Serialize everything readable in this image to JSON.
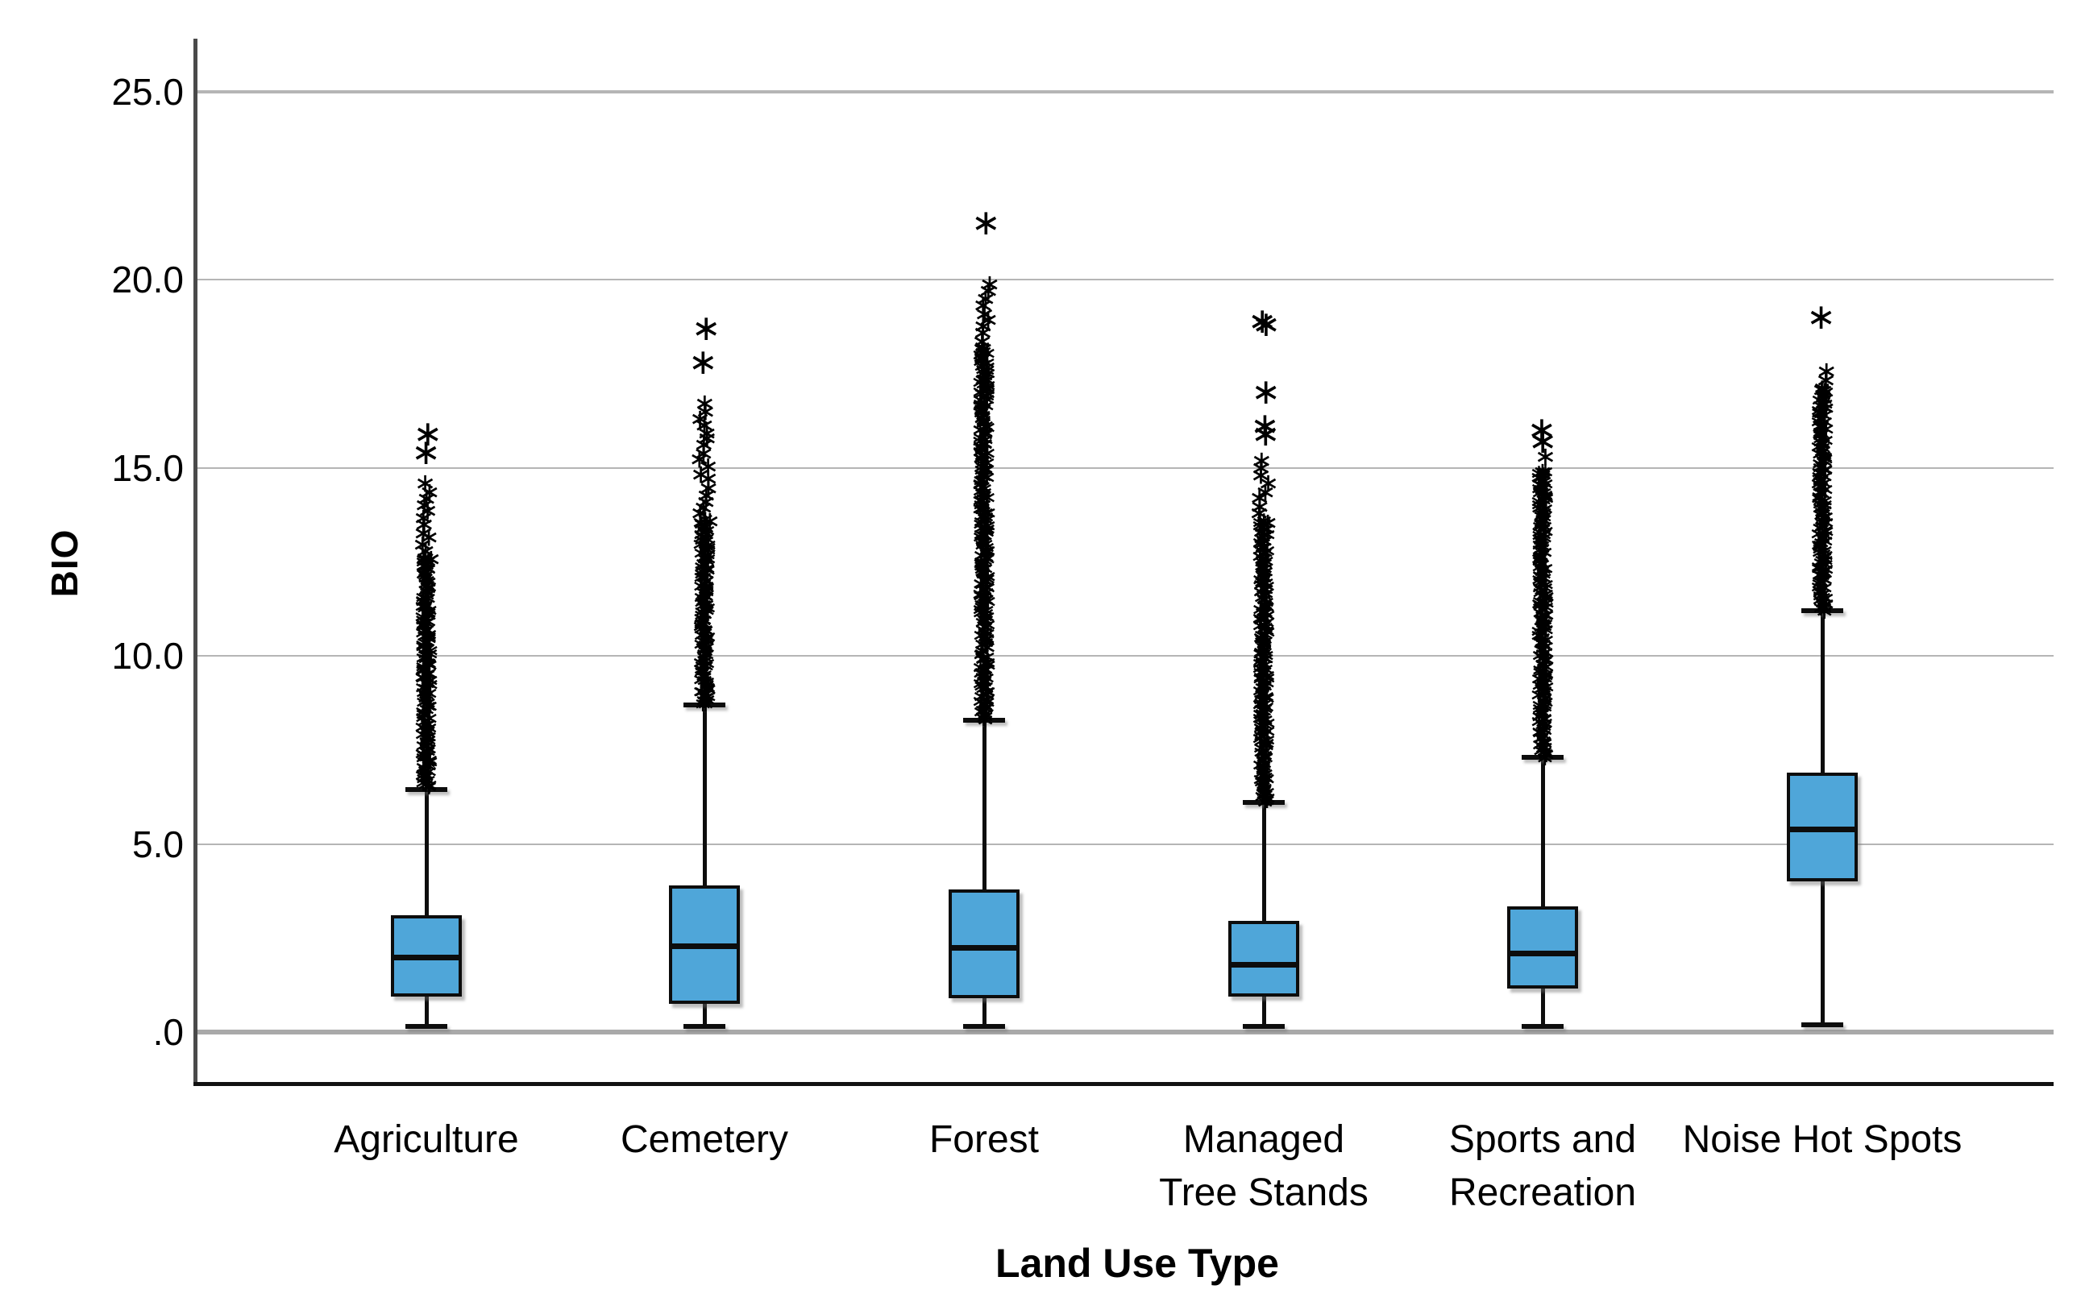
{
  "chart_data": {
    "type": "boxplot",
    "title": "",
    "xlabel": "Land Use Type",
    "ylabel": "BIO",
    "ylim": [
      0,
      26.5
    ],
    "ytick_labels": [
      ".0",
      "5.0",
      "10.0",
      "15.0",
      "20.0",
      "25.0"
    ],
    "ytick_values": [
      0,
      5,
      10,
      15,
      20,
      25
    ],
    "grid": "horizontal",
    "legend": "none",
    "box_fill_color": "#4fa6d9",
    "box_border_color": "#0d0d0d",
    "gridline_color": "#b5b5b5",
    "outlier_marker": "asterisk",
    "categories": [
      "Agriculture",
      "Cemetery",
      "Forest",
      "Managed Tree Stands",
      "Sports and Recreation",
      "Noise Hot Spots"
    ],
    "category_label_lines": [
      [
        "Agriculture"
      ],
      [
        "Cemetery"
      ],
      [
        "Forest"
      ],
      [
        "Managed",
        "Tree Stands"
      ],
      [
        "Sports and",
        "Recreation"
      ],
      [
        "Noise Hot Spots"
      ]
    ],
    "boxes": [
      {
        "label": "Agriculture",
        "q1": 0.95,
        "median": 2.0,
        "q3": 3.1,
        "whisker_low": 0.15,
        "whisker_high": 6.45,
        "outliers_dense": [
          6.5,
          12.6
        ],
        "outliers_sparse": [
          12.6,
          14.6
        ],
        "extreme_outliers": [
          15.4,
          15.9
        ]
      },
      {
        "label": "Cemetery",
        "q1": 0.75,
        "median": 2.3,
        "q3": 3.9,
        "whisker_low": 0.15,
        "whisker_high": 8.7,
        "outliers_dense": [
          8.7,
          13.6
        ],
        "outliers_sparse": [
          13.6,
          16.7
        ],
        "extreme_outliers": [
          17.8,
          18.7
        ]
      },
      {
        "label": "Forest",
        "q1": 0.9,
        "median": 2.25,
        "q3": 3.8,
        "whisker_low": 0.15,
        "whisker_high": 8.3,
        "outliers_dense": [
          8.3,
          18.2
        ],
        "outliers_sparse": [
          18.2,
          19.9
        ],
        "extreme_outliers": [
          21.5
        ]
      },
      {
        "label": "Managed Tree Stands",
        "q1": 0.95,
        "median": 1.8,
        "q3": 2.95,
        "whisker_low": 0.15,
        "whisker_high": 6.1,
        "outliers_dense": [
          6.1,
          13.6
        ],
        "outliers_sparse": [
          13.6,
          15.2
        ],
        "extreme_outliers": [
          15.9,
          16.1,
          17.0,
          18.8,
          18.9
        ]
      },
      {
        "label": "Sports and Recreation",
        "q1": 1.15,
        "median": 2.1,
        "q3": 3.35,
        "whisker_low": 0.15,
        "whisker_high": 7.3,
        "outliers_dense": [
          7.3,
          14.9
        ],
        "outliers_sparse": [
          14.9,
          15.3
        ],
        "extreme_outliers": [
          15.7,
          16.0
        ]
      },
      {
        "label": "Noise Hot Spots",
        "q1": 4.0,
        "median": 5.4,
        "q3": 6.9,
        "whisker_low": 0.2,
        "whisker_high": 11.2,
        "outliers_dense": [
          11.2,
          17.1
        ],
        "outliers_sparse": [
          17.1,
          17.6
        ],
        "extreme_outliers": [
          19.0
        ]
      }
    ]
  }
}
